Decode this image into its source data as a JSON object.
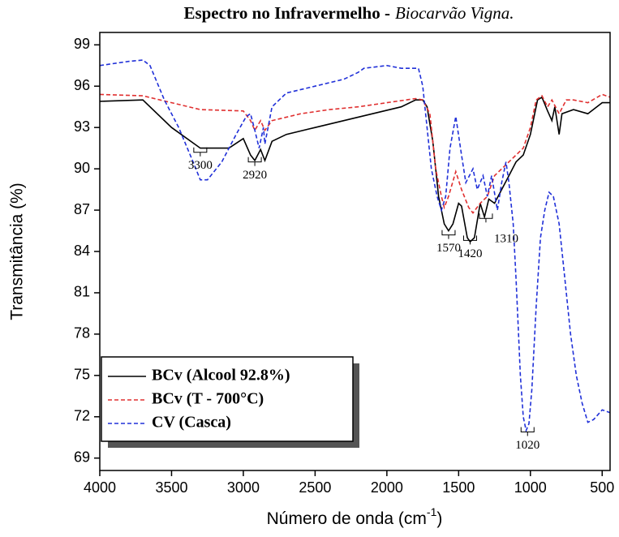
{
  "chart_data": {
    "type": "line",
    "title": "Espectro no Infravermelho -",
    "title_italic": "Biocarvão Vigna.",
    "xlabel": "Número de onda (cm",
    "xlabel_sup": "-1",
    "xlabel_end": ")",
    "ylabel": "Transmitância (%)",
    "xlim": [
      4000,
      445
    ],
    "ylim": [
      68.1,
      99.9
    ],
    "xticks": [
      4000,
      3500,
      3000,
      2500,
      2000,
      1500,
      1000,
      500
    ],
    "yticks": [
      69,
      72,
      75,
      78,
      81,
      84,
      87,
      90,
      93,
      96,
      99
    ],
    "legend": "lower left",
    "series": [
      {
        "name": "BCv (Alcool 92.8%)",
        "color": "#000000",
        "dash": false,
        "x": [
          4000,
          3700,
          3500,
          3300,
          3100,
          3000,
          2950,
          2920,
          2880,
          2850,
          2800,
          2700,
          2500,
          2300,
          2100,
          1900,
          1800,
          1750,
          1720,
          1680,
          1640,
          1600,
          1570,
          1540,
          1500,
          1480,
          1440,
          1420,
          1390,
          1350,
          1320,
          1290,
          1250,
          1200,
          1150,
          1100,
          1050,
          1000,
          950,
          920,
          880,
          850,
          830,
          800,
          780,
          700,
          600,
          500,
          445
        ],
        "values": [
          94.9,
          95,
          93,
          91.5,
          91.5,
          92.2,
          91,
          90.6,
          91.4,
          90.6,
          92,
          92.5,
          93,
          93.5,
          94,
          94.5,
          95,
          95,
          94.5,
          92,
          88,
          86,
          85.5,
          86,
          87.5,
          87.3,
          85,
          84.7,
          85,
          87.5,
          86.5,
          87.8,
          87.5,
          88.5,
          89.5,
          90.5,
          91,
          92.5,
          95,
          95.2,
          94.2,
          93.5,
          94.5,
          92.5,
          94,
          94.3,
          94,
          94.8,
          94.8
        ]
      },
      {
        "name": "BCv (T - 700°C)",
        "color": "#e03030",
        "dash": true,
        "x": [
          4000,
          3700,
          3500,
          3300,
          3000,
          2950,
          2920,
          2880,
          2850,
          2800,
          2600,
          2400,
          2200,
          2000,
          1800,
          1750,
          1700,
          1660,
          1620,
          1600,
          1570,
          1520,
          1480,
          1430,
          1400,
          1350,
          1300,
          1250,
          1200,
          1150,
          1100,
          1050,
          1000,
          960,
          920,
          880,
          850,
          800,
          750,
          700,
          600,
          500,
          445
        ],
        "values": [
          95.4,
          95.3,
          94.8,
          94.3,
          94.2,
          93.5,
          92.8,
          93.5,
          92.8,
          93.5,
          94,
          94.3,
          94.5,
          94.8,
          95.1,
          95,
          94,
          90,
          88,
          87.2,
          88,
          89.8,
          88.5,
          87.2,
          86.8,
          87.5,
          88,
          89.5,
          90,
          90.5,
          91,
          91.5,
          93,
          95,
          95.3,
          94.5,
          95,
          94,
          95,
          95,
          94.8,
          95.4,
          95.2
        ]
      },
      {
        "name": "CV (Casca)",
        "color": "#2030d8",
        "dash": true,
        "x": [
          4000,
          3800,
          3700,
          3650,
          3550,
          3450,
          3350,
          3300,
          3250,
          3150,
          3050,
          2980,
          2950,
          2920,
          2890,
          2860,
          2850,
          2800,
          2700,
          2500,
          2300,
          2200,
          2160,
          2000,
          1900,
          1780,
          1750,
          1720,
          1690,
          1650,
          1620,
          1590,
          1560,
          1520,
          1480,
          1450,
          1400,
          1370,
          1330,
          1300,
          1270,
          1230,
          1200,
          1170,
          1150,
          1120,
          1100,
          1085,
          1070,
          1050,
          1030,
          1010,
          990,
          960,
          930,
          900,
          870,
          840,
          800,
          760,
          720,
          680,
          640,
          600,
          560,
          500,
          445
        ],
        "values": [
          97.5,
          97.8,
          97.9,
          97.5,
          95,
          93,
          90.5,
          89.2,
          89.2,
          90.5,
          92.5,
          93.8,
          94,
          92.8,
          91.5,
          93,
          91.8,
          94.5,
          95.5,
          96,
          96.5,
          97,
          97.3,
          97.5,
          97.3,
          97.3,
          96,
          93,
          90,
          88,
          87,
          88,
          91.5,
          93.8,
          91,
          89,
          90,
          88.5,
          89.5,
          88,
          89.5,
          87,
          89,
          90.5,
          89,
          86,
          82,
          78.5,
          75,
          72,
          71,
          71.5,
          74,
          80,
          85,
          87,
          88.3,
          88,
          86,
          82,
          78,
          75,
          73,
          71.6,
          71.8,
          72.5,
          72.3
        ]
      }
    ],
    "annotations": [
      {
        "x": 3300,
        "y": 91.2
      },
      {
        "x": 2920,
        "y": 90.5
      },
      {
        "x": 1570,
        "y": 85.2
      },
      {
        "x": 1420,
        "y": 84.8
      },
      {
        "x": 1310,
        "y": 86.4
      },
      {
        "x": 1020,
        "y": 70.9
      }
    ]
  }
}
